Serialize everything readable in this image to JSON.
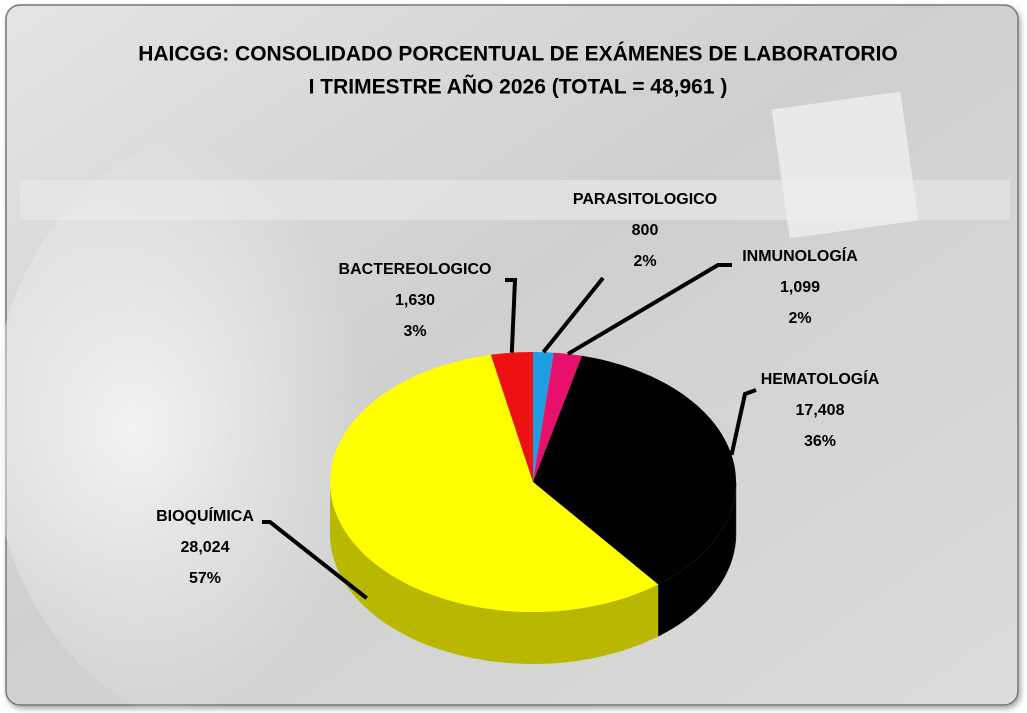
{
  "chart_data": {
    "type": "pie3d",
    "title": "HAICGG: CONSOLIDADO PORCENTUAL DE EXÁMENES DE LABORATORIO",
    "subtitle": "I TRIMESTRE AÑO 2026 (TOTAL = 48,961 )",
    "categories": [
      "PARASITOLOGICO",
      "INMUNOLOGÍA",
      "HEMATOLOGÍA",
      "BIOQUÍMICA",
      "BACTEREOLOGICO"
    ],
    "values": [
      800,
      1099,
      17408,
      28024,
      1630
    ],
    "value_labels": [
      "800",
      "1,099",
      "17,408",
      "28,024",
      "1,630"
    ],
    "percentages": [
      2,
      2,
      36,
      57,
      3
    ],
    "percentage_labels": [
      "2%",
      "2%",
      "36%",
      "57%",
      "3%"
    ],
    "colors": [
      "#1c9ee0",
      "#e8106c",
      "#000000",
      "#ffff00",
      "#ee1111"
    ]
  }
}
